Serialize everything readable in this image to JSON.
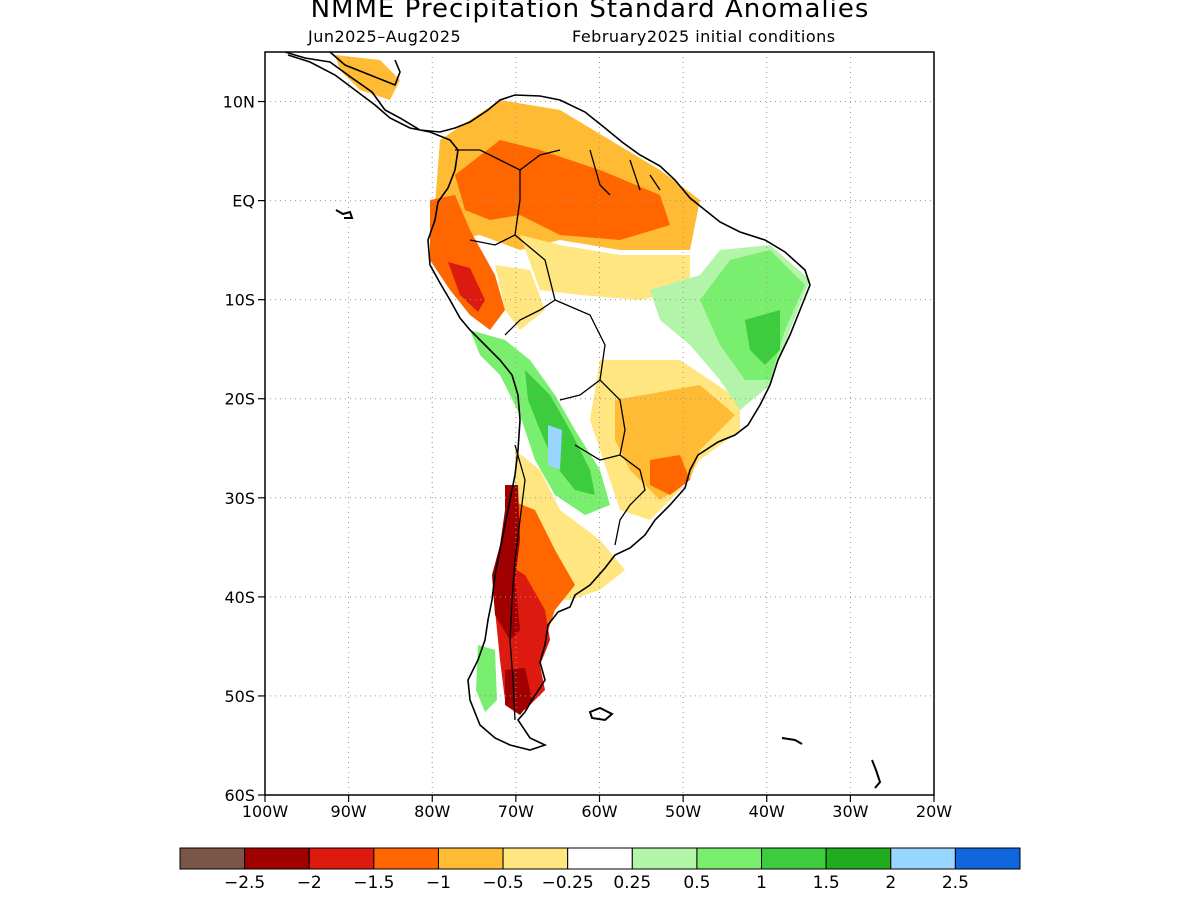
{
  "title": "NMME Precipitation Standard Anomalies",
  "subtitle_left": "Jun2025–Aug2025",
  "subtitle_right": "February2025 initial conditions",
  "map": {
    "lon_range": [
      -100,
      -20
    ],
    "lat_range": [
      -60,
      15
    ],
    "lat_ticks": [
      {
        "value": 10,
        "label": "10N"
      },
      {
        "value": 0,
        "label": "EQ"
      },
      {
        "value": -10,
        "label": "10S"
      },
      {
        "value": -20,
        "label": "20S"
      },
      {
        "value": -30,
        "label": "30S"
      },
      {
        "value": -40,
        "label": "40S"
      },
      {
        "value": -50,
        "label": "50S"
      },
      {
        "value": -60,
        "label": "60S"
      }
    ],
    "lon_ticks": [
      {
        "value": -100,
        "label": "100W"
      },
      {
        "value": -90,
        "label": "90W"
      },
      {
        "value": -80,
        "label": "80W"
      },
      {
        "value": -70,
        "label": "70W"
      },
      {
        "value": -60,
        "label": "60W"
      },
      {
        "value": -50,
        "label": "50W"
      },
      {
        "value": -40,
        "label": "40W"
      },
      {
        "value": -30,
        "label": "30W"
      },
      {
        "value": -20,
        "label": "20W"
      }
    ],
    "grid": "dotted"
  },
  "colorbar": {
    "colors": [
      "#7a5548",
      "#a00000",
      "#dd1a10",
      "#ff6600",
      "#ffbb33",
      "#ffe680",
      "#ffffff",
      "#b3f5a8",
      "#7aee6e",
      "#3dcc3d",
      "#1fad1f",
      "#99d6ff",
      "#1066dd"
    ],
    "labels": [
      "−2.5",
      "−2",
      "−1.5",
      "−1",
      "−0.5",
      "−0.25",
      "0.25",
      "0.5",
      "1",
      "1.5",
      "2",
      "2.5"
    ]
  }
}
